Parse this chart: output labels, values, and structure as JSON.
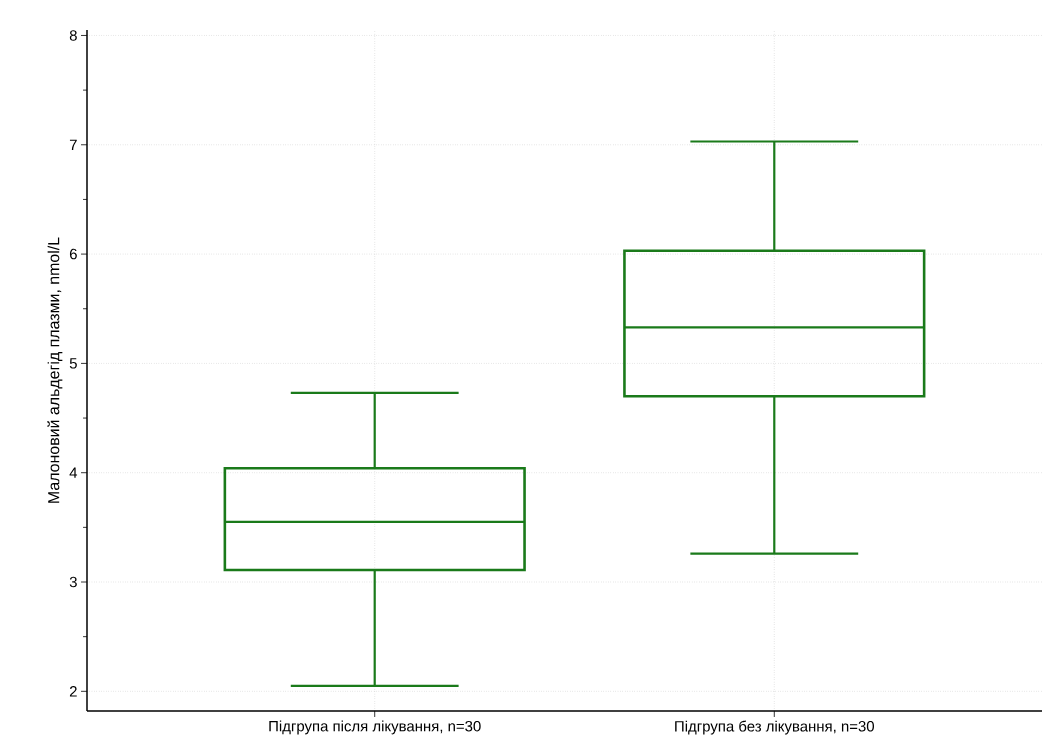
{
  "chart_data": {
    "type": "box",
    "ylabel": "Малоновий  альдегід плазми, nmol/L",
    "categories": [
      "Підгрупа після лікування, n=30",
      "Підгрупа без лікування, n=30"
    ],
    "boxes": [
      {
        "low": 2.05,
        "q1": 3.11,
        "median": 3.55,
        "q3": 4.04,
        "high": 4.73
      },
      {
        "low": 3.26,
        "q1": 4.7,
        "median": 5.33,
        "q3": 6.03,
        "high": 7.03
      }
    ],
    "color": "#1a7a1a",
    "ylim": [
      1.82,
      8.05
    ],
    "yticks": [
      2,
      {
        "value": 2.5,
        "label": null
      },
      3,
      {
        "value": 3.5,
        "label": null
      },
      4,
      {
        "value": 4.5,
        "label": null
      },
      5,
      {
        "value": 5.5,
        "label": null
      },
      6,
      {
        "value": 6.5,
        "label": null
      },
      7,
      {
        "value": 7.5,
        "label": null
      },
      8
    ],
    "grid": true
  }
}
